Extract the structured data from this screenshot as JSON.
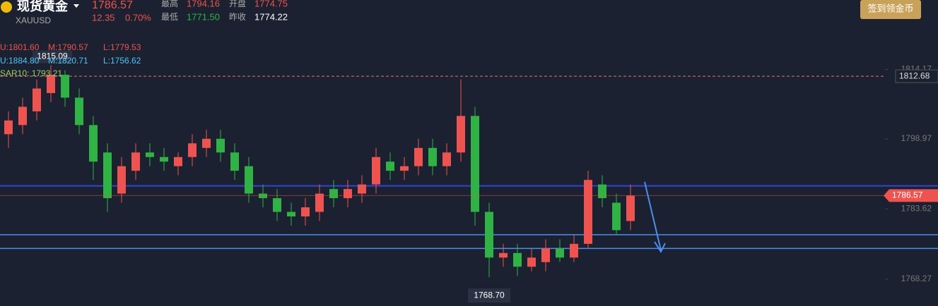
{
  "header": {
    "title": "现货黄金",
    "price": "1786.57",
    "symbol": "XAUUSD",
    "change": "12.35",
    "change_pct": "0.70%",
    "high_label": "最高",
    "high": "1794.16",
    "open_label": "开盘",
    "open": "1774.75",
    "low_label": "最低",
    "low": "1771.50",
    "prev_label": "昨收",
    "prev": "1774.22",
    "button": "签到领金币"
  },
  "indicators": [
    [
      "U:1801.60",
      "M:1790.57",
      "L:1779.53"
    ],
    [
      "U:1884.80",
      "M:1820.71",
      "L:1756.62"
    ],
    [
      "SAR10: 1793.21"
    ]
  ],
  "chart_data": {
    "type": "candlestick",
    "open": [
      1800,
      1802,
      1805,
      1809,
      1813,
      1808,
      1802,
      1796,
      1787,
      1792,
      1796,
      1795,
      1793,
      1795,
      1797,
      1799,
      1796,
      1793,
      1787,
      1786,
      1783,
      1782,
      1783,
      1788,
      1786,
      1787,
      1789,
      1794,
      1792,
      1793,
      1797,
      1793,
      1796,
      1804,
      1783,
      1773,
      1774,
      1771,
      1772,
      1775,
      1773,
      1776,
      1789,
      1785,
      1781
    ],
    "high": [
      1805,
      1808,
      1812,
      1815.09,
      1814,
      1810,
      1804,
      1798,
      1795,
      1798,
      1798,
      1797,
      1796,
      1800,
      1801,
      1801,
      1798,
      1795,
      1789,
      1788,
      1785,
      1786,
      1789,
      1790,
      1790,
      1791,
      1797,
      1796,
      1795,
      1799,
      1799,
      1798,
      1812,
      1806,
      1785,
      1776,
      1776,
      1775,
      1777,
      1777,
      1778,
      1792,
      1791,
      1787,
      1789
    ],
    "low": [
      1797,
      1800,
      1803,
      1807,
      1806,
      1800,
      1790,
      1783,
      1785,
      1790,
      1793,
      1792,
      1791,
      1793,
      1795,
      1794,
      1790,
      1785,
      1784,
      1781,
      1780,
      1780,
      1781,
      1784,
      1784,
      1785,
      1787,
      1790,
      1790,
      1791,
      1791,
      1791,
      1794,
      1780,
      1768.7,
      1771,
      1769,
      1770,
      1770,
      1772,
      1772,
      1775,
      1784,
      1778,
      1779
    ],
    "close": [
      1803,
      1806,
      1810,
      1813,
      1808,
      1802,
      1794,
      1786,
      1793,
      1796,
      1795,
      1794,
      1795,
      1798,
      1799,
      1796,
      1792,
      1787,
      1786,
      1783,
      1782,
      1784,
      1787,
      1786,
      1788,
      1789,
      1795,
      1792,
      1793,
      1797,
      1793,
      1796,
      1804,
      1783,
      1773,
      1774,
      1771,
      1773,
      1775,
      1773,
      1776,
      1790,
      1786,
      1779,
      1786.57
    ],
    "up_color": "#ef5350",
    "down_color": "#2fb344",
    "ylim": [
      1762.4,
      1829.37
    ],
    "yticks": [
      1814.17,
      1798.97,
      1783.62,
      1768.27
    ],
    "max_label": "1815.09",
    "min_label": "1768.70",
    "alert_line": 1812.68,
    "support_lines": [
      1788.7,
      1778.0,
      1775.0
    ]
  }
}
